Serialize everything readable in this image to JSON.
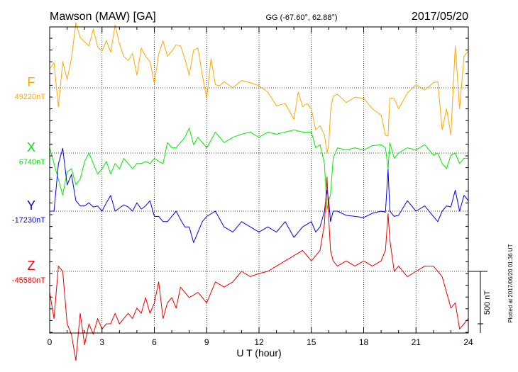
{
  "chart_data": {
    "type": "line",
    "title_left": "Mawson (MAW)  [GA]",
    "title_center": "GG (-67.60°,  62.88°)",
    "title_right": "2017/05/20",
    "xlabel": "U T (hour)",
    "xlim": [
      0,
      24
    ],
    "x_ticks": [
      "0",
      "3",
      "6",
      "9",
      "12",
      "15",
      "18",
      "21",
      "24"
    ],
    "scale_label": "500 nT",
    "scale_nT": 500,
    "footer": "Plotted at 2017/06/20 01:36 UT",
    "grid": true,
    "series": [
      {
        "name": "F",
        "baseline_label": "49220nT",
        "baseline_nT": 49220,
        "color": "#ffaa00",
        "x": [
          0,
          0.25,
          0.5,
          0.75,
          1,
          1.25,
          1.5,
          1.75,
          2,
          2.25,
          2.5,
          2.75,
          3,
          3.25,
          3.5,
          3.75,
          4,
          4.25,
          4.5,
          4.75,
          5,
          5.25,
          5.5,
          5.75,
          6,
          6.25,
          6.5,
          6.75,
          7,
          7.25,
          7.5,
          7.75,
          8,
          8.25,
          8.5,
          8.75,
          9,
          9.25,
          9.5,
          9.75,
          10,
          10.5,
          11,
          11.5,
          12,
          12.5,
          13,
          13.5,
          14,
          14.25,
          14.5,
          14.75,
          15,
          15.25,
          15.5,
          15.75,
          15.9,
          16,
          16.1,
          16.25,
          16.5,
          17,
          17.5,
          18,
          18.5,
          19,
          19.25,
          19.4,
          19.5,
          19.75,
          20,
          20.5,
          21,
          21.5,
          22,
          22.25,
          22.5,
          22.75,
          23,
          23.25,
          23.5,
          23.75,
          24
        ],
        "values": [
          180,
          240,
          -180,
          250,
          80,
          280,
          620,
          480,
          440,
          400,
          560,
          390,
          350,
          450,
          340,
          600,
          420,
          300,
          260,
          330,
          120,
          380,
          300,
          250,
          40,
          320,
          450,
          300,
          350,
          410,
          400,
          280,
          120,
          360,
          380,
          120,
          -100,
          280,
          30,
          20,
          60,
          0,
          70,
          50,
          20,
          -40,
          -170,
          -150,
          -300,
          -40,
          -180,
          -150,
          -200,
          -400,
          -360,
          -450,
          -620,
          -540,
          -220,
          -80,
          -60,
          -140,
          -90,
          -100,
          -200,
          -260,
          -450,
          -460,
          -100,
          -100,
          -200,
          -50,
          30,
          -20,
          50,
          60,
          -400,
          -200,
          -450,
          400,
          -200,
          300,
          350
        ]
      },
      {
        "name": "X",
        "baseline_label": "6740nT",
        "baseline_nT": 6740,
        "color": "#00ee00",
        "x": [
          0,
          0.25,
          0.5,
          0.75,
          1,
          1.25,
          1.5,
          1.75,
          2,
          2.25,
          2.5,
          2.75,
          3,
          3.25,
          3.5,
          3.75,
          4,
          4.25,
          4.5,
          4.75,
          5,
          5.25,
          5.5,
          5.75,
          6,
          6.25,
          6.5,
          6.75,
          7,
          7.25,
          7.5,
          7.75,
          8,
          8.25,
          8.5,
          8.75,
          9,
          9.5,
          10,
          10.5,
          11,
          11.5,
          12,
          12.5,
          13,
          13.5,
          14,
          14.5,
          15,
          15.25,
          15.5,
          15.75,
          15.9,
          16,
          16.1,
          16.25,
          16.5,
          17,
          17.5,
          18,
          18.5,
          19,
          19.25,
          19.4,
          19.5,
          19.75,
          20,
          20.5,
          21,
          21.5,
          22,
          22.25,
          22.5,
          22.75,
          23,
          23.25,
          23.5,
          23.75,
          24
        ],
        "values": [
          50,
          -100,
          -250,
          -400,
          -180,
          -150,
          -300,
          -250,
          -80,
          0,
          -100,
          -200,
          -150,
          -80,
          -200,
          -100,
          -150,
          -50,
          -100,
          -150,
          -100,
          -100,
          -80,
          -100,
          -50,
          -80,
          -100,
          100,
          50,
          50,
          100,
          150,
          240,
          80,
          150,
          100,
          50,
          200,
          100,
          150,
          180,
          200,
          150,
          200,
          180,
          200,
          220,
          200,
          200,
          50,
          80,
          -100,
          -540,
          -450,
          -400,
          -50,
          50,
          30,
          50,
          30,
          70,
          80,
          50,
          -150,
          100,
          -50,
          0,
          50,
          30,
          80,
          -20,
          0,
          -100,
          -150,
          -20,
          0,
          -100,
          -50,
          -50
        ]
      },
      {
        "name": "Y",
        "baseline_label": "-17230nT",
        "baseline_nT": -17230,
        "color": "#0000ee",
        "x": [
          0,
          0.25,
          0.5,
          0.75,
          1,
          1.25,
          1.5,
          1.75,
          2,
          2.25,
          2.5,
          2.75,
          3,
          3.25,
          3.5,
          3.75,
          4,
          4.25,
          4.5,
          4.75,
          5,
          5.25,
          5.5,
          5.75,
          6,
          6.25,
          6.5,
          6.75,
          7,
          7.25,
          7.5,
          7.75,
          8,
          8.25,
          8.5,
          8.75,
          9,
          9.5,
          10,
          10.5,
          11,
          11.5,
          12,
          12.5,
          13,
          13.5,
          14,
          14.5,
          15,
          15.25,
          15.5,
          15.75,
          15.9,
          16,
          16.1,
          16.25,
          16.5,
          17,
          17.5,
          18,
          18.5,
          19,
          19.25,
          19.4,
          19.5,
          19.75,
          20,
          20.5,
          21,
          21.5,
          22,
          22.25,
          22.5,
          22.75,
          23,
          23.25,
          23.5,
          23.75,
          24
        ],
        "values": [
          0,
          0,
          450,
          600,
          250,
          350,
          100,
          50,
          50,
          80,
          40,
          50,
          0,
          80,
          150,
          0,
          30,
          60,
          40,
          0,
          80,
          20,
          50,
          100,
          -50,
          -50,
          -100,
          -100,
          -50,
          0,
          -80,
          -150,
          -150,
          -300,
          -200,
          -100,
          -50,
          0,
          -150,
          -200,
          -100,
          -150,
          -200,
          -150,
          -200,
          -100,
          -250,
          -150,
          -100,
          -200,
          -150,
          0,
          200,
          100,
          -100,
          0,
          0,
          -40,
          -50,
          -60,
          -20,
          0,
          -10,
          400,
          0,
          -50,
          -40,
          100,
          0,
          50,
          -50,
          -100,
          0,
          50,
          40,
          200,
          0,
          150,
          100
        ]
      },
      {
        "name": "Z",
        "baseline_label": "-45580nT",
        "baseline_nT": -45580,
        "color": "#ee0000",
        "x": [
          0,
          0.25,
          0.5,
          0.75,
          1,
          1.25,
          1.5,
          1.75,
          2,
          2.25,
          2.5,
          2.75,
          3,
          3.25,
          3.5,
          3.75,
          4,
          4.25,
          4.5,
          4.75,
          5,
          5.25,
          5.5,
          5.75,
          6,
          6.25,
          6.5,
          6.75,
          7,
          7.25,
          7.5,
          7.75,
          8,
          8.5,
          9,
          9.5,
          10,
          10.5,
          11,
          11.5,
          12,
          12.5,
          13,
          13.5,
          14,
          14.5,
          15,
          15.25,
          15.5,
          15.75,
          15.9,
          16,
          16.1,
          16.25,
          16.5,
          17,
          17.5,
          18,
          18.5,
          19,
          19.25,
          19.4,
          19.5,
          19.75,
          20,
          20.5,
          21,
          21.5,
          22,
          22.25,
          22.5,
          22.75,
          23,
          23.25,
          23.5,
          23.75,
          24
        ],
        "values": [
          -200,
          -450,
          50,
          0,
          -500,
          -600,
          -850,
          -400,
          -700,
          -500,
          -600,
          -450,
          -550,
          -500,
          -500,
          -400,
          -500,
          -450,
          -400,
          -450,
          -350,
          -400,
          -250,
          -400,
          -300,
          -100,
          -450,
          -300,
          -250,
          -350,
          -150,
          -200,
          -250,
          -200,
          -300,
          -100,
          -150,
          -100,
          0,
          -50,
          -20,
          0,
          50,
          100,
          150,
          200,
          100,
          150,
          200,
          450,
          900,
          500,
          200,
          100,
          50,
          100,
          50,
          100,
          50,
          100,
          200,
          550,
          300,
          0,
          50,
          -50,
          0,
          50,
          50,
          0,
          -50,
          -200,
          -350,
          -300,
          -550,
          -500,
          -450
        ]
      }
    ]
  }
}
